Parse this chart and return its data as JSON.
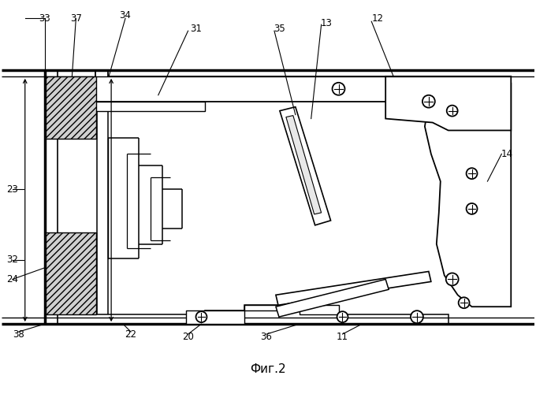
{
  "title": "Фиг.2",
  "bg_color": "#ffffff",
  "lc": "#000000",
  "figsize": [
    6.8,
    5.0
  ],
  "dpi": 100
}
